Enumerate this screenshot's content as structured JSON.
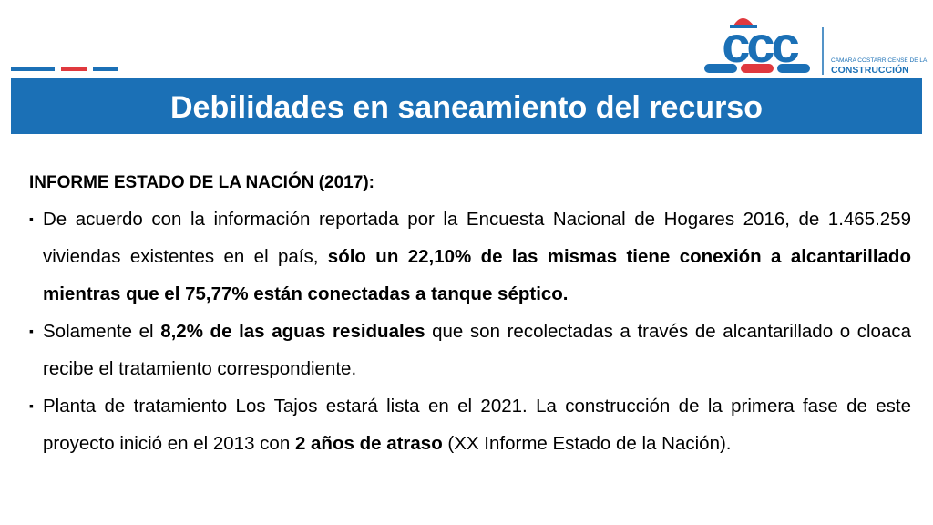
{
  "logo": {
    "mark": "ccc",
    "line1": "CÁMARA COSTARRICENSE DE LA",
    "line2": "CONSTRUCCIÓN"
  },
  "title": "Debilidades en saneamiento del recurso",
  "heading": "INFORME ESTADO DE LA NACIÓN (2017):",
  "bullets": [
    {
      "runs": [
        {
          "text": "De acuerdo con la información reportada por la Encuesta Nacional de Hogares 2016, de 1.465.259 viviendas existentes en el país, ",
          "bold": false
        },
        {
          "text": "sólo un 22,10% de las mismas tiene conexión a alcantarillado mientras que el 75,77% están conectadas a tanque séptico.",
          "bold": true
        }
      ]
    },
    {
      "runs": [
        {
          "text": "Solamente el ",
          "bold": false
        },
        {
          "text": "8,2% de las aguas residuales",
          "bold": true
        },
        {
          "text": " que son recolectadas a través de alcantarillado o cloaca recibe el tratamiento correspondiente.",
          "bold": false
        }
      ]
    },
    {
      "runs": [
        {
          "text": "Planta de tratamiento Los Tajos estará lista en el 2021. La construcción de la primera fase de este proyecto inició en el 2013 con ",
          "bold": false
        },
        {
          "text": "2 años de atraso",
          "bold": true
        },
        {
          "text": " (XX Informe Estado de la Nación).",
          "bold": false
        }
      ]
    }
  ]
}
